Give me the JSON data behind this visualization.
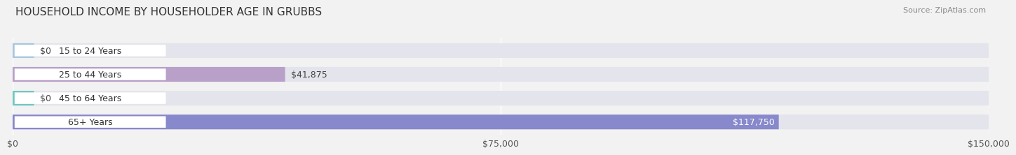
{
  "title": "HOUSEHOLD INCOME BY HOUSEHOLDER AGE IN GRUBBS",
  "source": "Source: ZipAtlas.com",
  "categories": [
    "15 to 24 Years",
    "25 to 44 Years",
    "45 to 64 Years",
    "65+ Years"
  ],
  "values": [
    0,
    41875,
    0,
    117750
  ],
  "bar_colors": [
    "#a8c8df",
    "#b8a0c8",
    "#70c8c0",
    "#8888cc"
  ],
  "bar_labels": [
    "$0",
    "$41,875",
    "$0",
    "$117,750"
  ],
  "label_inside": [
    false,
    false,
    false,
    true
  ],
  "xlim": [
    0,
    150000
  ],
  "xticks": [
    0,
    75000,
    150000
  ],
  "xticklabels": [
    "$0",
    "$75,000",
    "$150,000"
  ],
  "background_color": "#f2f2f2",
  "bar_bg_color": "#e4e4ec",
  "title_fontsize": 11,
  "source_fontsize": 8,
  "tick_fontsize": 9,
  "label_fontsize": 9,
  "category_fontsize": 9
}
